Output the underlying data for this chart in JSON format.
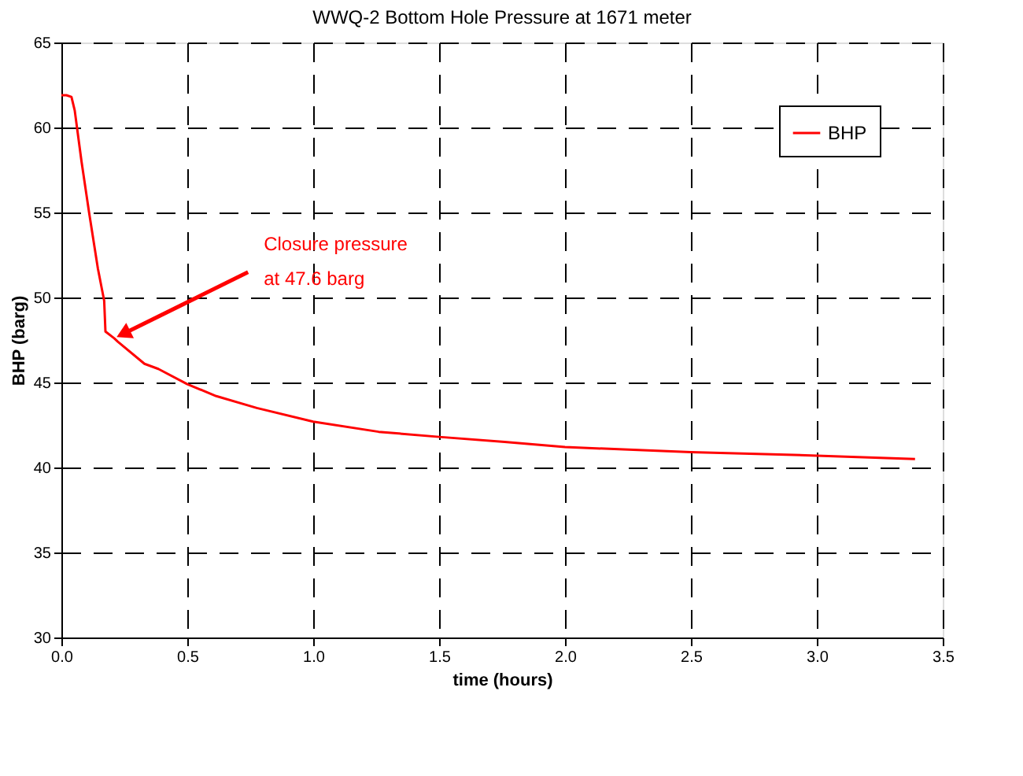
{
  "chart_data": {
    "type": "line",
    "title": "WWQ-2 Bottom Hole Pressure at 1671 meter",
    "xlabel": "time (hours)",
    "ylabel": "BHP (barg)",
    "x": [
      0,
      0.02,
      0.04,
      0.053,
      0.08,
      0.11,
      0.145,
      0.17,
      0.175,
      0.21,
      0.224,
      0.33,
      0.385,
      0.5,
      0.615,
      0.776,
      1.0,
      1.26,
      1.5,
      1.76,
      2.0,
      2.5,
      3.0,
      3.39
    ],
    "series": [
      {
        "name": "BHP",
        "color": "#ff0000",
        "values": [
          61.9,
          61.9,
          61.8,
          61.0,
          58.0,
          55.0,
          51.7,
          49.8,
          48.0,
          47.6,
          47.4,
          46.1,
          45.8,
          44.9,
          44.2,
          43.5,
          42.7,
          42.1,
          41.8,
          41.5,
          41.2,
          40.9,
          40.7,
          40.5
        ]
      }
    ],
    "xlim": [
      0,
      3.5
    ],
    "xticks": [
      {
        "value": 0,
        "label": "0.0"
      },
      0.5,
      {
        "value": 1,
        "label": "1.0"
      },
      1.5,
      {
        "value": 2,
        "label": "2.0"
      },
      2.5,
      {
        "value": 3,
        "label": "3.0"
      },
      3.5
    ],
    "ylim": [
      30,
      65
    ],
    "yticks": [
      30,
      35,
      40,
      45,
      50,
      55,
      60,
      65
    ],
    "annotations": [
      {
        "text": "Closure pressure\nat 47.6 barg",
        "x": 0.21,
        "y": 47.6
      }
    ],
    "grid": true,
    "legend": "top right",
    "marker": "none",
    "line_style": "solid"
  }
}
